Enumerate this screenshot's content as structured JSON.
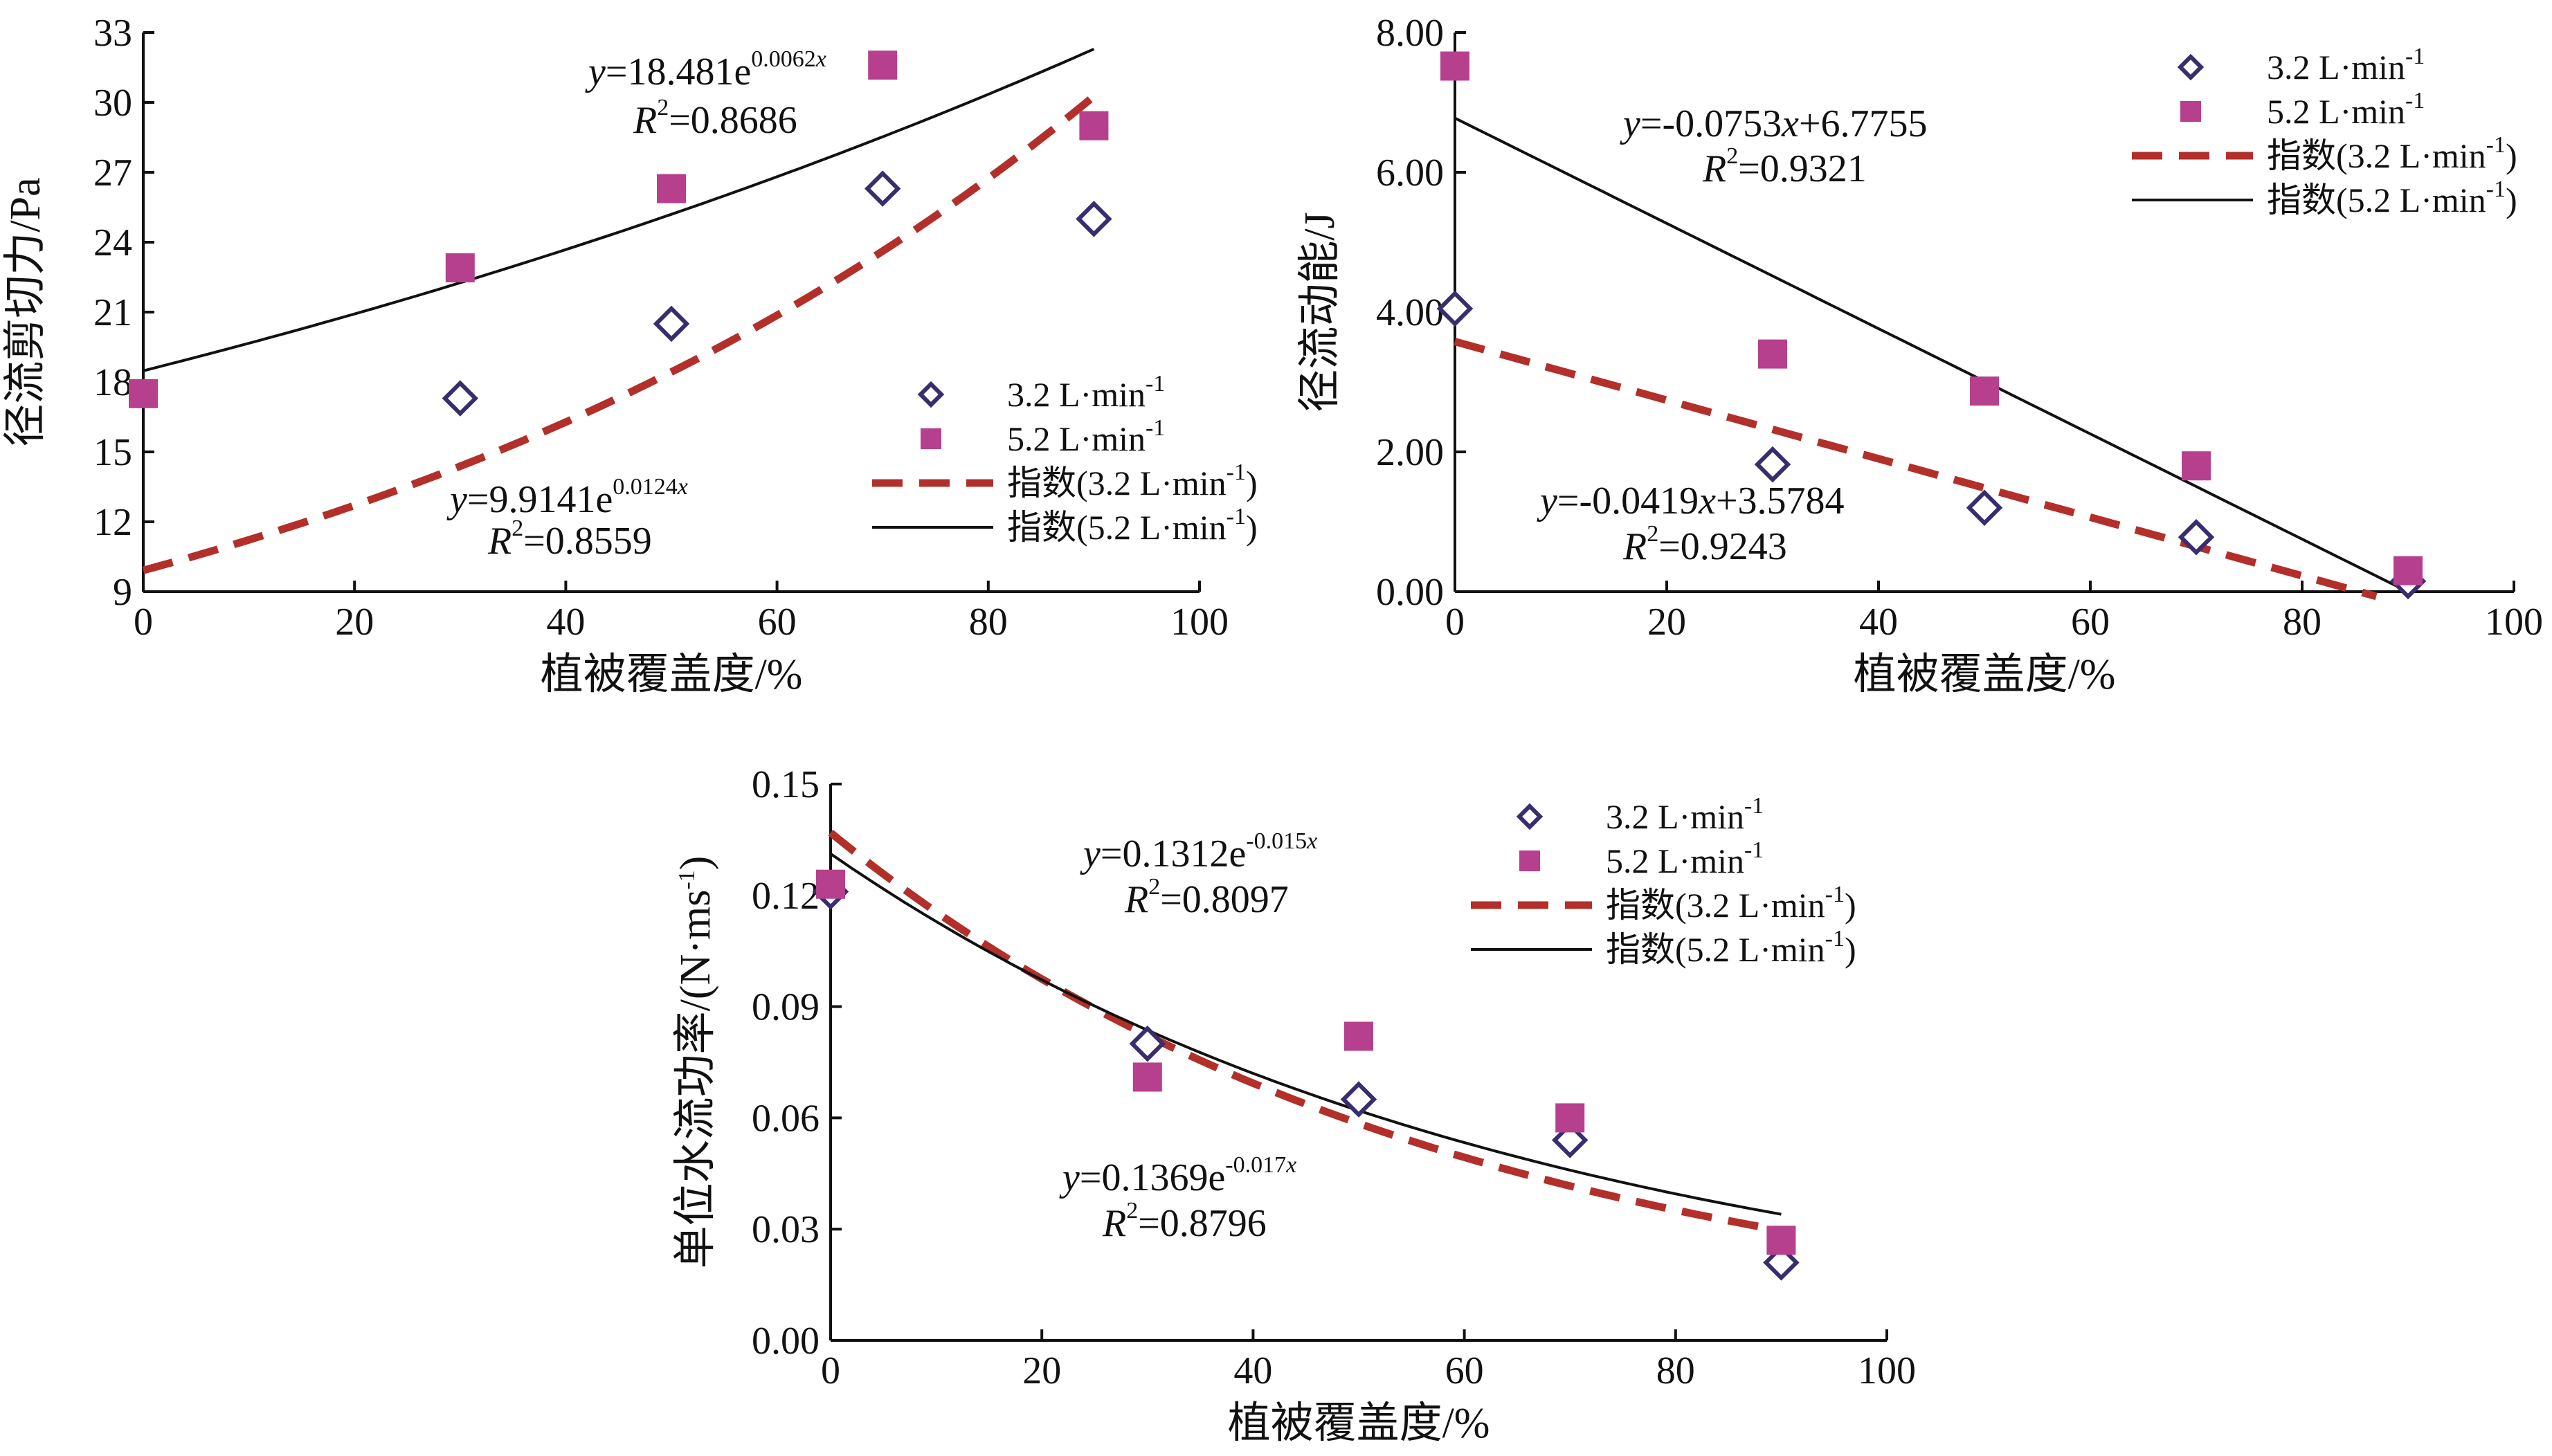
{
  "colors": {
    "axis": "#111111",
    "diamond_stroke": "#3a2d6e",
    "square_fill": "#b6408e",
    "dashed_line": "#b22f2a",
    "solid_line": "#111111"
  },
  "chart_data": [
    {
      "type": "scatter",
      "xlabel": "植被覆盖度/%",
      "ylabel": "径流剪切力/Pa",
      "xlim": [
        0,
        100
      ],
      "ylim": [
        9,
        33
      ],
      "xticks": [
        "0",
        "20",
        "40",
        "60",
        "80",
        "100"
      ],
      "yticks": [
        "9",
        "12",
        "15",
        "18",
        "21",
        "24",
        "27",
        "30",
        "33"
      ],
      "series": [
        {
          "name": "3.2 L·min-1",
          "marker": "diamond-open",
          "x": [
            30,
            50,
            70,
            90
          ],
          "y": [
            17.3,
            20.5,
            26.3,
            25.0
          ]
        },
        {
          "name": "5.2 L·min-1",
          "marker": "square-filled",
          "x": [
            0,
            30,
            50,
            70,
            90
          ],
          "y": [
            17.5,
            22.9,
            26.3,
            31.6,
            29.0
          ]
        }
      ],
      "fits": [
        {
          "name": "指数(3.2 L·min-1)",
          "kind": "exp",
          "a": 9.9141,
          "b": 0.0124,
          "xmax": 90,
          "style": "dashed",
          "eq_lhs": "y",
          "eq_mid": "=9.9141e",
          "eq_sup": "0.0124x",
          "r2_lhs": "R",
          "r2_text": "=0.8559"
        },
        {
          "name": "指数(5.2 L·min-1)",
          "kind": "exp",
          "a": 18.481,
          "b": 0.0062,
          "xmax": 90,
          "style": "solid",
          "eq_lhs": "y",
          "eq_mid": "=18.481e",
          "eq_sup": "0.0062x",
          "r2_lhs": "R",
          "r2_text": "=0.8686"
        }
      ],
      "legend_placement": "bottom-right"
    },
    {
      "type": "scatter",
      "xlabel": "植被覆盖度/%",
      "ylabel": "径流动能/J",
      "xlim": [
        0,
        100
      ],
      "ylim": [
        0,
        8
      ],
      "xticks": [
        "0",
        "20",
        "40",
        "60",
        "80",
        "100"
      ],
      "yticks": [
        "0.00",
        "2.00",
        "4.00",
        "6.00",
        "8.00"
      ],
      "series": [
        {
          "name": "3.2 L·min-1",
          "marker": "diamond-open",
          "x": [
            0,
            30,
            50,
            70,
            90
          ],
          "y": [
            4.05,
            1.82,
            1.2,
            0.78,
            0.15
          ]
        },
        {
          "name": "5.2 L·min-1",
          "marker": "square-filled",
          "x": [
            0,
            30,
            50,
            70,
            90
          ],
          "y": [
            7.52,
            3.4,
            2.87,
            1.8,
            0.3
          ]
        }
      ],
      "fits": [
        {
          "name": "指数(3.2 L·min-1)",
          "kind": "linear",
          "m": -0.0419,
          "c": 3.5784,
          "xmax": 87,
          "style": "dashed",
          "eq_lhs": "y",
          "eq_mid": "=-0.0419",
          "eq_x": "x",
          "eq_tail": "+3.5784",
          "r2_lhs": "R",
          "r2_text": "=0.9243"
        },
        {
          "name": "指数(5.2 L·min-1)",
          "kind": "linear",
          "m": -0.0753,
          "c": 6.7755,
          "xmax": 90,
          "style": "solid",
          "eq_lhs": "y",
          "eq_mid": "=-0.0753",
          "eq_x": "x",
          "eq_tail": "+6.7755",
          "r2_lhs": "R",
          "r2_text": "=0.9321"
        }
      ],
      "legend_placement": "top-right"
    },
    {
      "type": "scatter",
      "xlabel": "植被覆盖度/%",
      "ylabel": "单位水流功率/(N·ms-1)",
      "xlim": [
        0,
        100
      ],
      "ylim": [
        0,
        0.15
      ],
      "xticks": [
        "0",
        "20",
        "40",
        "60",
        "80",
        "100"
      ],
      "yticks": [
        "0.00",
        "0.03",
        "0.06",
        "0.09",
        "0.12",
        "0.15"
      ],
      "series": [
        {
          "name": "3.2 L·min-1",
          "marker": "diamond-open",
          "x": [
            0,
            30,
            50,
            70,
            90
          ],
          "y": [
            0.121,
            0.08,
            0.065,
            0.054,
            0.021
          ]
        },
        {
          "name": "5.2 L·min-1",
          "marker": "square-filled",
          "x": [
            0,
            30,
            50,
            70,
            90
          ],
          "y": [
            0.123,
            0.071,
            0.082,
            0.06,
            0.027
          ]
        }
      ],
      "fits": [
        {
          "name": "指数(3.2 L·min-1)",
          "kind": "exp",
          "a": 0.1369,
          "b": -0.017,
          "xmax": 90,
          "style": "dashed",
          "eq_lhs": "y",
          "eq_mid": "=0.1369e",
          "eq_sup": "-0.017x",
          "r2_lhs": "R",
          "r2_text": "=0.8796"
        },
        {
          "name": "指数(5.2 L·min-1)",
          "kind": "exp",
          "a": 0.1312,
          "b": -0.015,
          "xmax": 90,
          "style": "solid",
          "eq_lhs": "y",
          "eq_mid": "=0.1312e",
          "eq_sup": "-0.015x",
          "r2_lhs": "R",
          "r2_text": "=0.8097"
        }
      ],
      "legend_placement": "top-right"
    }
  ]
}
